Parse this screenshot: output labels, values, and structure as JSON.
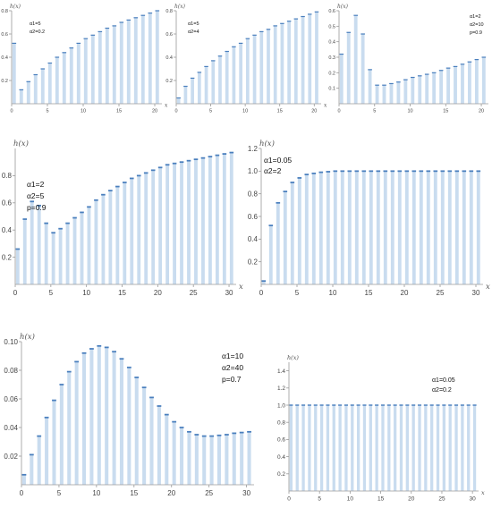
{
  "style": {
    "bar_color": "#c9dcef",
    "cap_color": "#4a7fbd",
    "axis_color": "#9a9a9a",
    "text_color": "#444444"
  },
  "chart_data": [
    {
      "type": "bar",
      "xlabel": "x",
      "ylabel": "h(x)",
      "xlim": [
        0,
        21
      ],
      "ylim": [
        0,
        0.8
      ],
      "xticks": [
        "0",
        "5",
        "10",
        "15",
        "20"
      ],
      "yticks": [
        "0.2",
        "0.4",
        "0.6",
        "0.8"
      ],
      "annotations": [
        "α1=5",
        "α2=0.2"
      ],
      "x": [
        0,
        1,
        2,
        3,
        4,
        5,
        6,
        7,
        8,
        9,
        10,
        11,
        12,
        13,
        14,
        15,
        16,
        17,
        18,
        19,
        20
      ],
      "values": [
        0.52,
        0.12,
        0.19,
        0.25,
        0.3,
        0.35,
        0.4,
        0.44,
        0.48,
        0.52,
        0.56,
        0.59,
        0.62,
        0.65,
        0.67,
        0.7,
        0.72,
        0.74,
        0.76,
        0.78,
        0.8
      ]
    },
    {
      "type": "bar",
      "xlabel": "x",
      "ylabel": "h(x)",
      "xlim": [
        0,
        21
      ],
      "ylim": [
        0,
        0.8
      ],
      "xticks": [
        "0",
        "5",
        "10",
        "15",
        "20"
      ],
      "yticks": [
        "0.2",
        "0.4",
        "0.6",
        "0.8"
      ],
      "annotations": [
        "α1=5",
        "α2=4"
      ],
      "x": [
        0,
        1,
        2,
        3,
        4,
        5,
        6,
        7,
        8,
        9,
        10,
        11,
        12,
        13,
        14,
        15,
        16,
        17,
        18,
        19,
        20
      ],
      "values": [
        0.05,
        0.15,
        0.22,
        0.27,
        0.32,
        0.37,
        0.41,
        0.45,
        0.49,
        0.52,
        0.56,
        0.59,
        0.62,
        0.64,
        0.67,
        0.69,
        0.71,
        0.73,
        0.75,
        0.77,
        0.79
      ]
    },
    {
      "type": "bar",
      "xlabel": "",
      "ylabel": "h(x)",
      "xlim": [
        0,
        21
      ],
      "ylim": [
        0,
        0.6
      ],
      "xticks": [
        "0",
        "5",
        "10",
        "15",
        "20"
      ],
      "yticks": [
        "0.1",
        "0.2",
        "0.3",
        "0.4",
        "0.5",
        "0.6"
      ],
      "annotations": [
        "α1=2",
        "α2=10",
        "p=0.9"
      ],
      "x": [
        0,
        1,
        2,
        3,
        4,
        5,
        6,
        7,
        8,
        9,
        10,
        11,
        12,
        13,
        14,
        15,
        16,
        17,
        18,
        19,
        20
      ],
      "values": [
        0.32,
        0.46,
        0.57,
        0.45,
        0.22,
        0.12,
        0.12,
        0.13,
        0.14,
        0.155,
        0.17,
        0.18,
        0.19,
        0.2,
        0.215,
        0.23,
        0.24,
        0.255,
        0.27,
        0.285,
        0.3
      ]
    },
    {
      "type": "bar",
      "xlabel": "x",
      "ylabel": "h(x)",
      "xlim": [
        0,
        31
      ],
      "ylim": [
        0,
        1.0
      ],
      "xticks": [
        "0",
        "5",
        "10",
        "15",
        "20",
        "25",
        "30"
      ],
      "yticks": [
        "0.2",
        "0.4",
        "0.6",
        "0.8"
      ],
      "annotations": [
        "α1=2",
        "α2=5",
        "p=0.9"
      ],
      "x": [
        0,
        1,
        2,
        3,
        4,
        5,
        6,
        7,
        8,
        9,
        10,
        11,
        12,
        13,
        14,
        15,
        16,
        17,
        18,
        19,
        20,
        21,
        22,
        23,
        24,
        25,
        26,
        27,
        28,
        29,
        30
      ],
      "values": [
        0.26,
        0.48,
        0.61,
        0.58,
        0.45,
        0.38,
        0.41,
        0.45,
        0.49,
        0.53,
        0.57,
        0.62,
        0.66,
        0.69,
        0.72,
        0.75,
        0.78,
        0.8,
        0.82,
        0.84,
        0.86,
        0.88,
        0.89,
        0.9,
        0.91,
        0.92,
        0.93,
        0.94,
        0.95,
        0.96,
        0.97
      ]
    },
    {
      "type": "bar",
      "xlabel": "x",
      "ylabel": "h(x)",
      "xlim": [
        0,
        31
      ],
      "ylim": [
        0,
        1.2
      ],
      "xticks": [
        "0",
        "5",
        "10",
        "15",
        "20",
        "25",
        "30"
      ],
      "yticks": [
        "0.2",
        "0.4",
        "0.6",
        "0.8",
        "1.0",
        "1.2"
      ],
      "annotations": [
        "α1=0.05",
        "α2=2"
      ],
      "x": [
        0,
        1,
        2,
        3,
        4,
        5,
        6,
        7,
        8,
        9,
        10,
        11,
        12,
        13,
        14,
        15,
        16,
        17,
        18,
        19,
        20,
        21,
        22,
        23,
        24,
        25,
        26,
        27,
        28,
        29,
        30
      ],
      "values": [
        0.03,
        0.52,
        0.72,
        0.82,
        0.9,
        0.94,
        0.97,
        0.98,
        0.99,
        0.995,
        1.0,
        1.0,
        1.0,
        1.0,
        1.0,
        1.0,
        1.0,
        1.0,
        1.0,
        1.0,
        1.0,
        1.0,
        1.0,
        1.0,
        1.0,
        1.0,
        1.0,
        1.0,
        1.0,
        1.0,
        1.0
      ]
    },
    {
      "type": "bar",
      "xlabel": "",
      "ylabel": "h(x)",
      "xlim": [
        0,
        31
      ],
      "ylim": [
        0,
        0.1
      ],
      "xticks": [
        "0",
        "5",
        "10",
        "15",
        "20",
        "25",
        "30"
      ],
      "yticks": [
        "0.02",
        "0.04",
        "0.06",
        "0.08",
        "0.10"
      ],
      "annotations": [
        "α1=10",
        "α2=40",
        "p=0.7"
      ],
      "x": [
        0,
        1,
        2,
        3,
        4,
        5,
        6,
        7,
        8,
        9,
        10,
        11,
        12,
        13,
        14,
        15,
        16,
        17,
        18,
        19,
        20,
        21,
        22,
        23,
        24,
        25,
        26,
        27,
        28,
        29,
        30
      ],
      "values": [
        0.007,
        0.021,
        0.034,
        0.047,
        0.059,
        0.07,
        0.079,
        0.086,
        0.092,
        0.095,
        0.097,
        0.096,
        0.093,
        0.088,
        0.082,
        0.075,
        0.068,
        0.061,
        0.055,
        0.049,
        0.044,
        0.04,
        0.037,
        0.035,
        0.034,
        0.034,
        0.0345,
        0.035,
        0.036,
        0.0365,
        0.037
      ]
    },
    {
      "type": "bar",
      "xlabel": "x",
      "ylabel": "h(x)",
      "xlim": [
        0,
        31
      ],
      "ylim": [
        0,
        1.5
      ],
      "xticks": [
        "0",
        "5",
        "10",
        "15",
        "20",
        "25",
        "30"
      ],
      "yticks": [
        "0.2",
        "0.4",
        "0.6",
        "0.8",
        "1.0",
        "1.2",
        "1.4"
      ],
      "annotations": [
        "α1=0.05",
        "α2=0.2"
      ],
      "x": [
        0,
        1,
        2,
        3,
        4,
        5,
        6,
        7,
        8,
        9,
        10,
        11,
        12,
        13,
        14,
        15,
        16,
        17,
        18,
        19,
        20,
        21,
        22,
        23,
        24,
        25,
        26,
        27,
        28,
        29,
        30
      ],
      "values": [
        1.0,
        1.0,
        1.0,
        1.0,
        1.0,
        1.0,
        1.0,
        1.0,
        1.0,
        1.0,
        1.0,
        1.0,
        1.0,
        1.0,
        1.0,
        1.0,
        1.0,
        1.0,
        1.0,
        1.0,
        1.0,
        1.0,
        1.0,
        1.0,
        1.0,
        1.0,
        1.0,
        1.0,
        1.0,
        1.0,
        1.0
      ]
    }
  ]
}
